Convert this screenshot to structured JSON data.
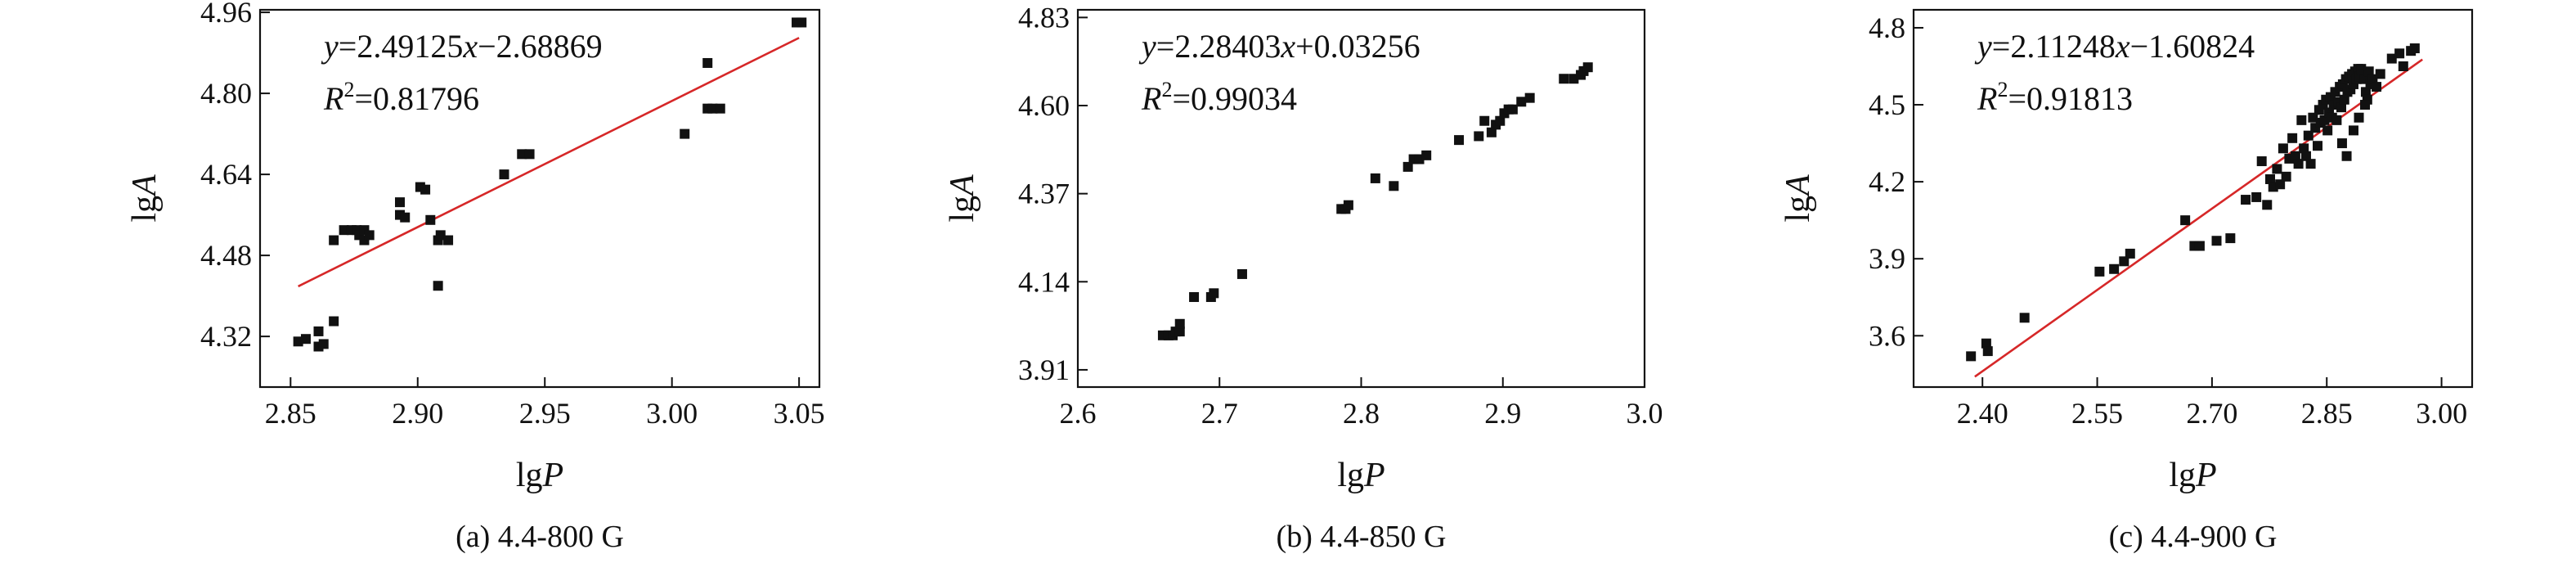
{
  "chart_data": [
    {
      "type": "scatter",
      "caption": "(a) 4.4-800 G",
      "xlabel_main": "lg",
      "xlabel_var": "P",
      "ylabel_main": "lg",
      "ylabel_var": "A",
      "xlim": [
        2.838,
        3.058
      ],
      "ylim": [
        4.22,
        4.965
      ],
      "xticks": [
        2.85,
        2.9,
        2.95,
        3.0,
        3.05
      ],
      "xtick_labels": [
        "2.85",
        "2.90",
        "2.95",
        "3.00",
        "3.05"
      ],
      "yticks": [
        4.32,
        4.48,
        4.64,
        4.8,
        4.96
      ],
      "ytick_labels": [
        "4.32",
        "4.48",
        "4.64",
        "4.80",
        "4.96"
      ],
      "equation": {
        "y": "y",
        "eq_rest": "=2.49125",
        "x": "x",
        "tail": "−2.68869"
      },
      "r2": {
        "r": "R",
        "sup": "2",
        "val": "=0.81796"
      },
      "fit": {
        "slope": 2.49125,
        "intercept": -2.68869,
        "x_range": [
          2.853,
          3.05
        ],
        "color": "#d62728"
      },
      "points": [
        [
          2.853,
          4.31
        ],
        [
          2.856,
          4.315
        ],
        [
          2.861,
          4.33
        ],
        [
          2.861,
          4.3
        ],
        [
          2.863,
          4.305
        ],
        [
          2.867,
          4.35
        ],
        [
          2.867,
          4.51
        ],
        [
          2.871,
          4.53
        ],
        [
          2.874,
          4.53
        ],
        [
          2.876,
          4.53
        ],
        [
          2.877,
          4.52
        ],
        [
          2.879,
          4.53
        ],
        [
          2.879,
          4.51
        ],
        [
          2.881,
          4.52
        ],
        [
          2.893,
          4.56
        ],
        [
          2.893,
          4.585
        ],
        [
          2.895,
          4.555
        ],
        [
          2.901,
          4.615
        ],
        [
          2.903,
          4.61
        ],
        [
          2.905,
          4.55
        ],
        [
          2.908,
          4.51
        ],
        [
          2.909,
          4.52
        ],
        [
          2.908,
          4.42
        ],
        [
          2.912,
          4.51
        ],
        [
          2.934,
          4.64
        ],
        [
          2.941,
          4.68
        ],
        [
          2.944,
          4.68
        ],
        [
          3.005,
          4.72
        ],
        [
          3.014,
          4.77
        ],
        [
          3.014,
          4.86
        ],
        [
          3.016,
          4.77
        ],
        [
          3.019,
          4.77
        ],
        [
          3.049,
          4.94
        ],
        [
          3.051,
          4.94
        ]
      ],
      "color": "#111111"
    },
    {
      "type": "scatter",
      "caption": "(b) 4.4-850 G",
      "xlabel_main": "lg",
      "xlabel_var": "P",
      "ylabel_main": "lg",
      "ylabel_var": "A",
      "xlim": [
        2.6,
        3.0
      ],
      "ylim": [
        3.865,
        4.85
      ],
      "xticks": [
        2.6,
        2.7,
        2.8,
        2.9,
        3.0
      ],
      "xtick_labels": [
        "2.6",
        "2.7",
        "2.8",
        "2.9",
        "3.0"
      ],
      "yticks": [
        3.91,
        4.14,
        4.37,
        4.6,
        4.83
      ],
      "ytick_labels": [
        "3.91",
        "4.14",
        "4.37",
        "4.60",
        "4.83"
      ],
      "equation": {
        "y": "y",
        "eq_rest": "=2.28403",
        "x": "x",
        "tail": "+0.03256"
      },
      "r2": {
        "r": "R",
        "sup": "2",
        "val": "=0.99034"
      },
      "fit": {
        "slope": 2.28403,
        "intercept": 0.03256,
        "x_range": [
          2.66,
          2.96
        ],
        "color": "#d62728"
      },
      "points": [
        [
          2.66,
          4.0
        ],
        [
          2.664,
          4.0
        ],
        [
          2.667,
          4.0
        ],
        [
          2.669,
          4.01
        ],
        [
          2.672,
          4.01
        ],
        [
          2.672,
          4.03
        ],
        [
          2.682,
          4.1
        ],
        [
          2.694,
          4.1
        ],
        [
          2.696,
          4.11
        ],
        [
          2.716,
          4.16
        ],
        [
          2.786,
          4.33
        ],
        [
          2.789,
          4.33
        ],
        [
          2.791,
          4.34
        ],
        [
          2.81,
          4.41
        ],
        [
          2.823,
          4.39
        ],
        [
          2.833,
          4.44
        ],
        [
          2.837,
          4.46
        ],
        [
          2.841,
          4.46
        ],
        [
          2.846,
          4.47
        ],
        [
          2.869,
          4.51
        ],
        [
          2.883,
          4.52
        ],
        [
          2.887,
          4.56
        ],
        [
          2.892,
          4.53
        ],
        [
          2.895,
          4.55
        ],
        [
          2.898,
          4.56
        ],
        [
          2.901,
          4.58
        ],
        [
          2.904,
          4.59
        ],
        [
          2.907,
          4.59
        ],
        [
          2.913,
          4.61
        ],
        [
          2.919,
          4.62
        ],
        [
          2.943,
          4.67
        ],
        [
          2.95,
          4.67
        ],
        [
          2.955,
          4.68
        ],
        [
          2.957,
          4.69
        ],
        [
          2.96,
          4.7
        ]
      ],
      "color": "#111111"
    },
    {
      "type": "scatter",
      "caption": "(c) 4.4-900 G",
      "xlabel_main": "lg",
      "xlabel_var": "P",
      "ylabel_main": "lg",
      "ylabel_var": "A",
      "xlim": [
        2.31,
        3.04
      ],
      "ylim": [
        3.4,
        4.87
      ],
      "xticks": [
        2.4,
        2.55,
        2.7,
        2.85,
        3.0
      ],
      "xtick_labels": [
        "2.40",
        "2.55",
        "2.70",
        "2.85",
        "3.00"
      ],
      "yticks": [
        3.6,
        3.9,
        4.2,
        4.5,
        4.8
      ],
      "ytick_labels": [
        "3.6",
        "3.9",
        "4.2",
        "4.5",
        "4.8"
      ],
      "equation": {
        "y": "y",
        "eq_rest": "=2.11248",
        "x": "x",
        "tail": "−1.60824"
      },
      "r2": {
        "r": "R",
        "sup": "2",
        "val": "=0.91813"
      },
      "fit": {
        "slope": 2.11248,
        "intercept": -1.60824,
        "x_range": [
          2.39,
          2.975
        ],
        "color": "#d62728"
      },
      "points": [
        [
          2.385,
          3.52
        ],
        [
          2.405,
          3.57
        ],
        [
          2.407,
          3.54
        ],
        [
          2.455,
          3.67
        ],
        [
          2.553,
          3.85
        ],
        [
          2.572,
          3.86
        ],
        [
          2.585,
          3.89
        ],
        [
          2.593,
          3.92
        ],
        [
          2.665,
          4.05
        ],
        [
          2.677,
          3.95
        ],
        [
          2.684,
          3.95
        ],
        [
          2.706,
          3.97
        ],
        [
          2.724,
          3.98
        ],
        [
          2.744,
          4.13
        ],
        [
          2.758,
          4.14
        ],
        [
          2.765,
          4.28
        ],
        [
          2.772,
          4.11
        ],
        [
          2.776,
          4.21
        ],
        [
          2.78,
          4.18
        ],
        [
          2.785,
          4.25
        ],
        [
          2.789,
          4.19
        ],
        [
          2.793,
          4.33
        ],
        [
          2.797,
          4.22
        ],
        [
          2.801,
          4.29
        ],
        [
          2.805,
          4.37
        ],
        [
          2.809,
          4.3
        ],
        [
          2.813,
          4.27
        ],
        [
          2.817,
          4.44
        ],
        [
          2.82,
          4.33
        ],
        [
          2.823,
          4.3
        ],
        [
          2.826,
          4.38
        ],
        [
          2.829,
          4.27
        ],
        [
          2.832,
          4.45
        ],
        [
          2.835,
          4.41
        ],
        [
          2.838,
          4.34
        ],
        [
          2.84,
          4.48
        ],
        [
          2.842,
          4.43
        ],
        [
          2.845,
          4.5
        ],
        [
          2.847,
          4.44
        ],
        [
          2.849,
          4.52
        ],
        [
          2.851,
          4.4
        ],
        [
          2.853,
          4.47
        ],
        [
          2.855,
          4.53
        ],
        [
          2.857,
          4.45
        ],
        [
          2.859,
          4.5
        ],
        [
          2.861,
          4.55
        ],
        [
          2.863,
          4.44
        ],
        [
          2.865,
          4.51
        ],
        [
          2.867,
          4.57
        ],
        [
          2.869,
          4.49
        ],
        [
          2.871,
          4.58
        ],
        [
          2.873,
          4.52
        ],
        [
          2.875,
          4.6
        ],
        [
          2.877,
          4.55
        ],
        [
          2.879,
          4.61
        ],
        [
          2.881,
          4.56
        ],
        [
          2.883,
          4.62
        ],
        [
          2.885,
          4.58
        ],
        [
          2.887,
          4.63
        ],
        [
          2.889,
          4.6
        ],
        [
          2.891,
          4.64
        ],
        [
          2.893,
          4.61
        ],
        [
          2.895,
          4.64
        ],
        [
          2.897,
          4.62
        ],
        [
          2.899,
          4.6
        ],
        [
          2.901,
          4.55
        ],
        [
          2.903,
          4.52
        ],
        [
          2.905,
          4.63
        ],
        [
          2.907,
          4.58
        ],
        [
          2.87,
          4.35
        ],
        [
          2.876,
          4.3
        ],
        [
          2.885,
          4.4
        ],
        [
          2.892,
          4.45
        ],
        [
          2.9,
          4.5
        ],
        [
          2.91,
          4.6
        ],
        [
          2.92,
          4.62
        ],
        [
          2.935,
          4.68
        ],
        [
          2.945,
          4.7
        ],
        [
          2.965,
          4.72
        ],
        [
          2.95,
          4.65
        ],
        [
          2.96,
          4.71
        ],
        [
          2.915,
          4.57
        ]
      ],
      "color": "#111111"
    }
  ]
}
